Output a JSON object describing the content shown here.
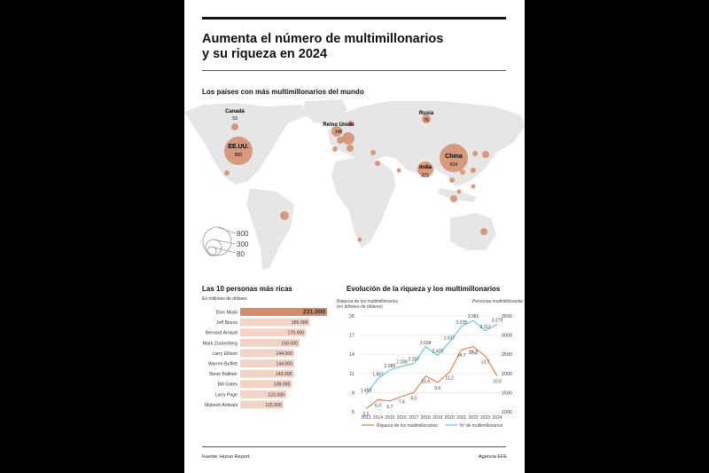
{
  "title_line1": "Aumenta el número de multimillonarios",
  "title_line2": "y su riqueza en 2024",
  "map": {
    "title": "Los países con más multimillonarios del mundo",
    "labels": [
      {
        "country": "Canadá",
        "value": "53"
      },
      {
        "country": "EE.UU.",
        "value": "800"
      },
      {
        "country": "Reino Unido",
        "value": "146"
      },
      {
        "country": "Rusia",
        "value": "76"
      },
      {
        "country": "China",
        "value": "814"
      },
      {
        "country": "India",
        "value": "271"
      }
    ],
    "legend": [
      "800",
      "300",
      "80"
    ],
    "colors": {
      "bubble": "#d48b6b",
      "land": "#e6e6e6"
    }
  },
  "rich": {
    "title": "Las 10 personas más ricas",
    "subtitle": "En millones de dólares",
    "colors": {
      "top": "#d48b6b",
      "rest": "#f1d4c5"
    }
  },
  "evol": {
    "title": "Evolución de la riqueza y los multimillonarios",
    "left_axis_title_1": "Riqueza de los multimillonarios",
    "left_axis_title_2": "(en billones de dólares)",
    "right_axis_title": "Personas multimillonarias",
    "legend_wealth": "Riqueza de los multimillonarios",
    "legend_people": "Nº de multimillonarios",
    "colors": {
      "wealth": "#e07a3e",
      "people": "#5bc8d8"
    }
  },
  "footer": {
    "source": "Fuente: Hurun Report.",
    "agency": "Agencia EFE"
  },
  "chart_data": [
    {
      "type": "bar",
      "title": "Las 10 personas más ricas",
      "subtitle": "En millones de dólares",
      "categories": [
        "Elon Musk",
        "Jeff Bezos",
        "Bernard Arnault",
        "Mark Zuckerberg",
        "Larry Ellison",
        "Warren Buffett",
        "Steve Ballmer",
        "Bill Gates",
        "Larry Page",
        "Mukesh Ambani"
      ],
      "values": [
        231000,
        185000,
        175000,
        158000,
        144000,
        144000,
        143000,
        138000,
        123000,
        115000
      ],
      "value_labels": [
        "231.000",
        "185.000",
        "175.000",
        "158.000",
        "144.000",
        "144.000",
        "143.000",
        "138.000",
        "123.000",
        "115.000"
      ]
    },
    {
      "type": "line",
      "title": "Evolución de la riqueza y los multimillonarios",
      "x": [
        "2013",
        "2014",
        "2015",
        "2016",
        "2017",
        "2018",
        "2019",
        "2020",
        "2021",
        "2022",
        "2023",
        "2024"
      ],
      "series": [
        {
          "name": "Riqueza de los multimillonarios",
          "axis": "left",
          "values": [
            5.5,
            6.9,
            6.7,
            7.4,
            8.0,
            10.6,
            9.6,
            11.2,
            14.7,
            15.2,
            13.7,
            10.6
          ],
          "labels": [
            "5,5",
            "6,9",
            "6,7",
            "7,4",
            "8,0",
            "10,6",
            "9,6",
            "11,2",
            "14,7",
            "15,2",
            "13,7",
            "10,6"
          ]
        },
        {
          "name": "Nº de multimillonarios",
          "axis": "right",
          "values": [
            1453,
            1867,
            2089,
            2188,
            2257,
            2694,
            2470,
            2817,
            3228,
            3381,
            3112,
            3279
          ],
          "labels": [
            "1.453",
            "1.867",
            "2.089",
            "2.188",
            "2.257",
            "2.694",
            "2.470",
            "2.817",
            "3.228",
            "3.381",
            "3.112",
            "3.279"
          ]
        }
      ],
      "ylabel": "Riqueza de los multimillonarios (en billones de dólares)",
      "ylim": [
        5,
        20
      ],
      "yticks": [
        "5",
        "8",
        "11",
        "14",
        "17",
        "20"
      ],
      "y2label": "Personas multimillonarias",
      "y2lim": [
        1000,
        3500
      ],
      "y2ticks": [
        "1000",
        "1500",
        "2000",
        "2500",
        "3000",
        "3500"
      ],
      "legend": "bottom"
    }
  ]
}
